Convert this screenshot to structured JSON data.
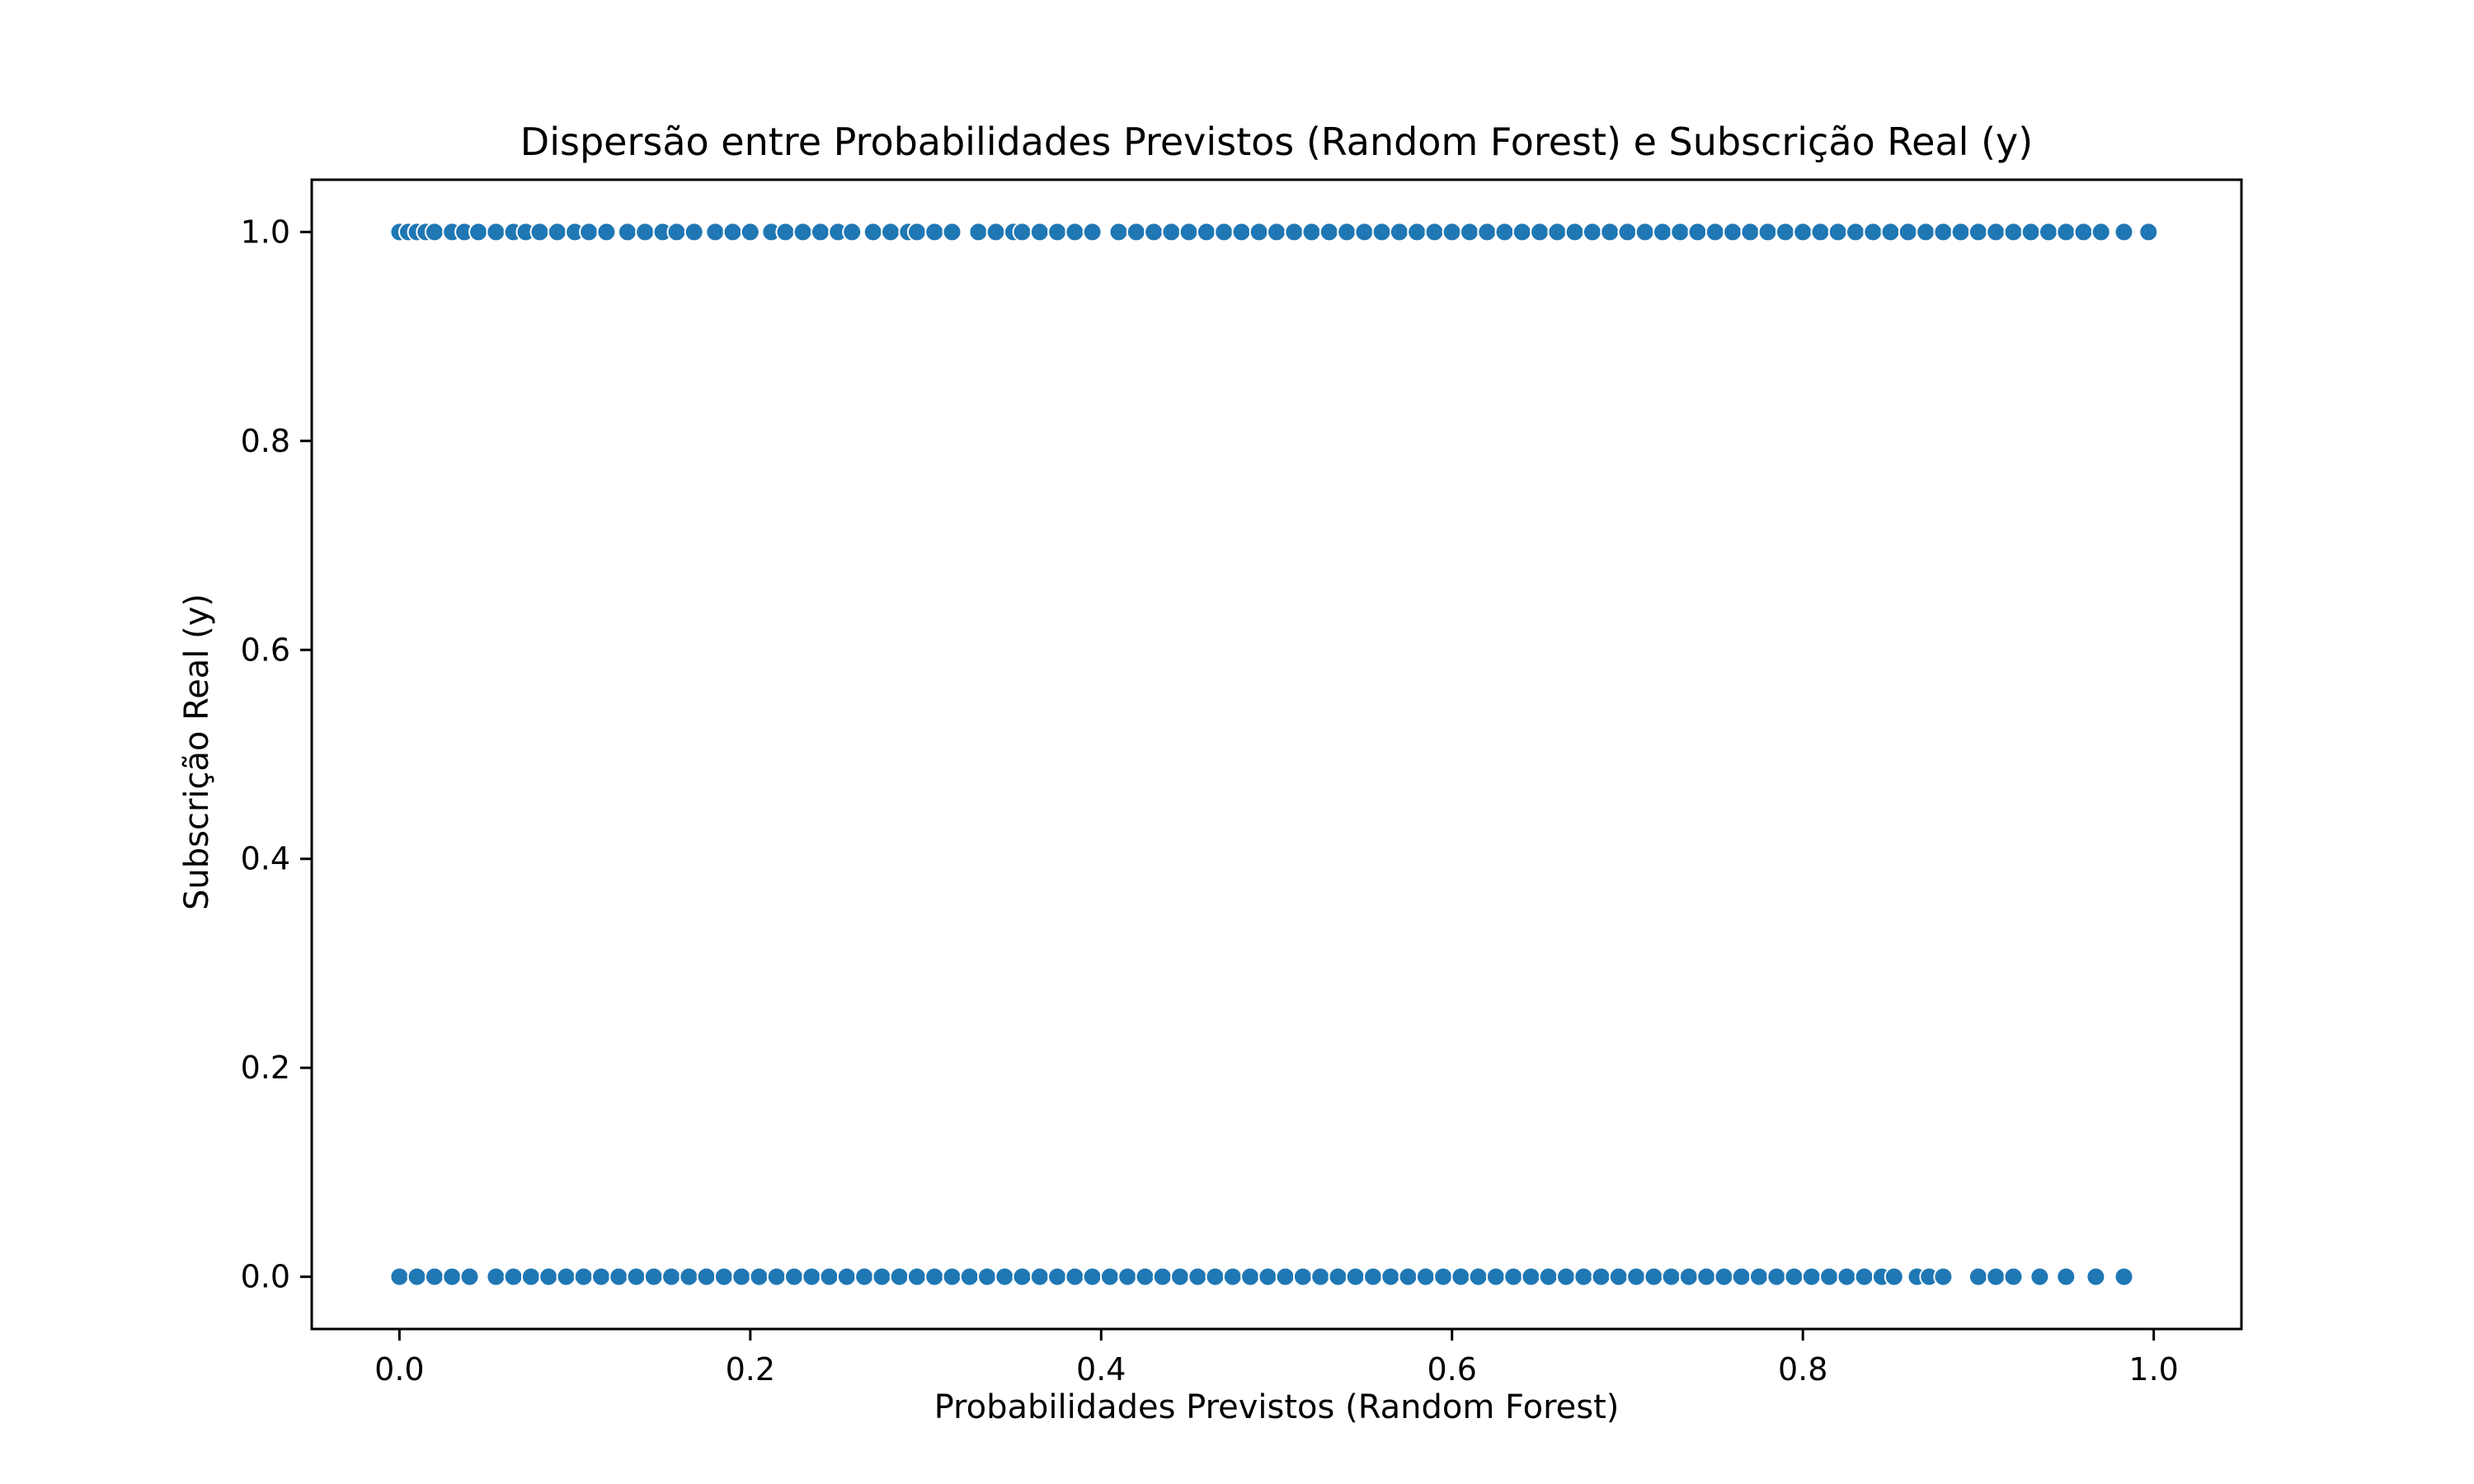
{
  "chart_data": {
    "type": "scatter",
    "title": "Dispersão entre Probabilidades Previstos (Random Forest) e Subscrição Real (y)",
    "xlabel": "Probabilidades Previstos (Random Forest)",
    "ylabel": "Subscrição Real (y)",
    "xlim": [
      -0.05,
      1.05
    ],
    "ylim": [
      -0.05,
      1.05
    ],
    "xticks": [
      "0.0",
      "0.2",
      "0.4",
      "0.6",
      "0.8",
      "1.0"
    ],
    "yticks": [
      "0.0",
      "0.2",
      "0.4",
      "0.6",
      "0.8",
      "1.0"
    ],
    "grid": false,
    "legend": "none",
    "color": "#1f77b4",
    "series": [
      {
        "y": 1,
        "x": [
          0.0,
          0.005,
          0.01,
          0.015,
          0.02,
          0.03,
          0.037,
          0.045,
          0.055,
          0.065,
          0.072,
          0.08,
          0.09,
          0.1,
          0.108,
          0.118,
          0.13,
          0.14,
          0.15,
          0.158,
          0.168,
          0.18,
          0.19,
          0.2,
          0.212,
          0.22,
          0.23,
          0.24,
          0.25,
          0.258,
          0.27,
          0.28,
          0.29,
          0.295,
          0.305,
          0.315,
          0.33,
          0.34,
          0.35,
          0.355,
          0.365,
          0.375,
          0.385,
          0.395,
          0.41,
          0.42,
          0.43,
          0.44,
          0.45,
          0.46,
          0.47,
          0.48,
          0.49,
          0.5,
          0.51,
          0.52,
          0.53,
          0.54,
          0.55,
          0.56,
          0.57,
          0.58,
          0.59,
          0.6,
          0.61,
          0.62,
          0.63,
          0.64,
          0.65,
          0.66,
          0.67,
          0.68,
          0.69,
          0.7,
          0.71,
          0.72,
          0.73,
          0.74,
          0.75,
          0.76,
          0.77,
          0.78,
          0.79,
          0.8,
          0.81,
          0.82,
          0.83,
          0.84,
          0.85,
          0.86,
          0.87,
          0.88,
          0.89,
          0.9,
          0.91,
          0.92,
          0.93,
          0.94,
          0.95,
          0.96,
          0.97,
          0.983,
          0.997
        ]
      },
      {
        "y": 0,
        "x": [
          0.0,
          0.01,
          0.02,
          0.03,
          0.04,
          0.055,
          0.065,
          0.075,
          0.085,
          0.095,
          0.105,
          0.115,
          0.125,
          0.135,
          0.145,
          0.155,
          0.165,
          0.175,
          0.185,
          0.195,
          0.205,
          0.215,
          0.225,
          0.235,
          0.245,
          0.255,
          0.265,
          0.275,
          0.285,
          0.295,
          0.305,
          0.315,
          0.325,
          0.335,
          0.345,
          0.355,
          0.365,
          0.375,
          0.385,
          0.395,
          0.405,
          0.415,
          0.425,
          0.435,
          0.445,
          0.455,
          0.465,
          0.475,
          0.485,
          0.495,
          0.505,
          0.515,
          0.525,
          0.535,
          0.545,
          0.555,
          0.565,
          0.575,
          0.585,
          0.595,
          0.605,
          0.615,
          0.625,
          0.635,
          0.645,
          0.655,
          0.665,
          0.675,
          0.685,
          0.695,
          0.705,
          0.715,
          0.725,
          0.735,
          0.745,
          0.755,
          0.765,
          0.775,
          0.785,
          0.795,
          0.805,
          0.815,
          0.825,
          0.835,
          0.845,
          0.852,
          0.865,
          0.872,
          0.88,
          0.9,
          0.91,
          0.92,
          0.935,
          0.95,
          0.967,
          0.983
        ]
      }
    ]
  }
}
